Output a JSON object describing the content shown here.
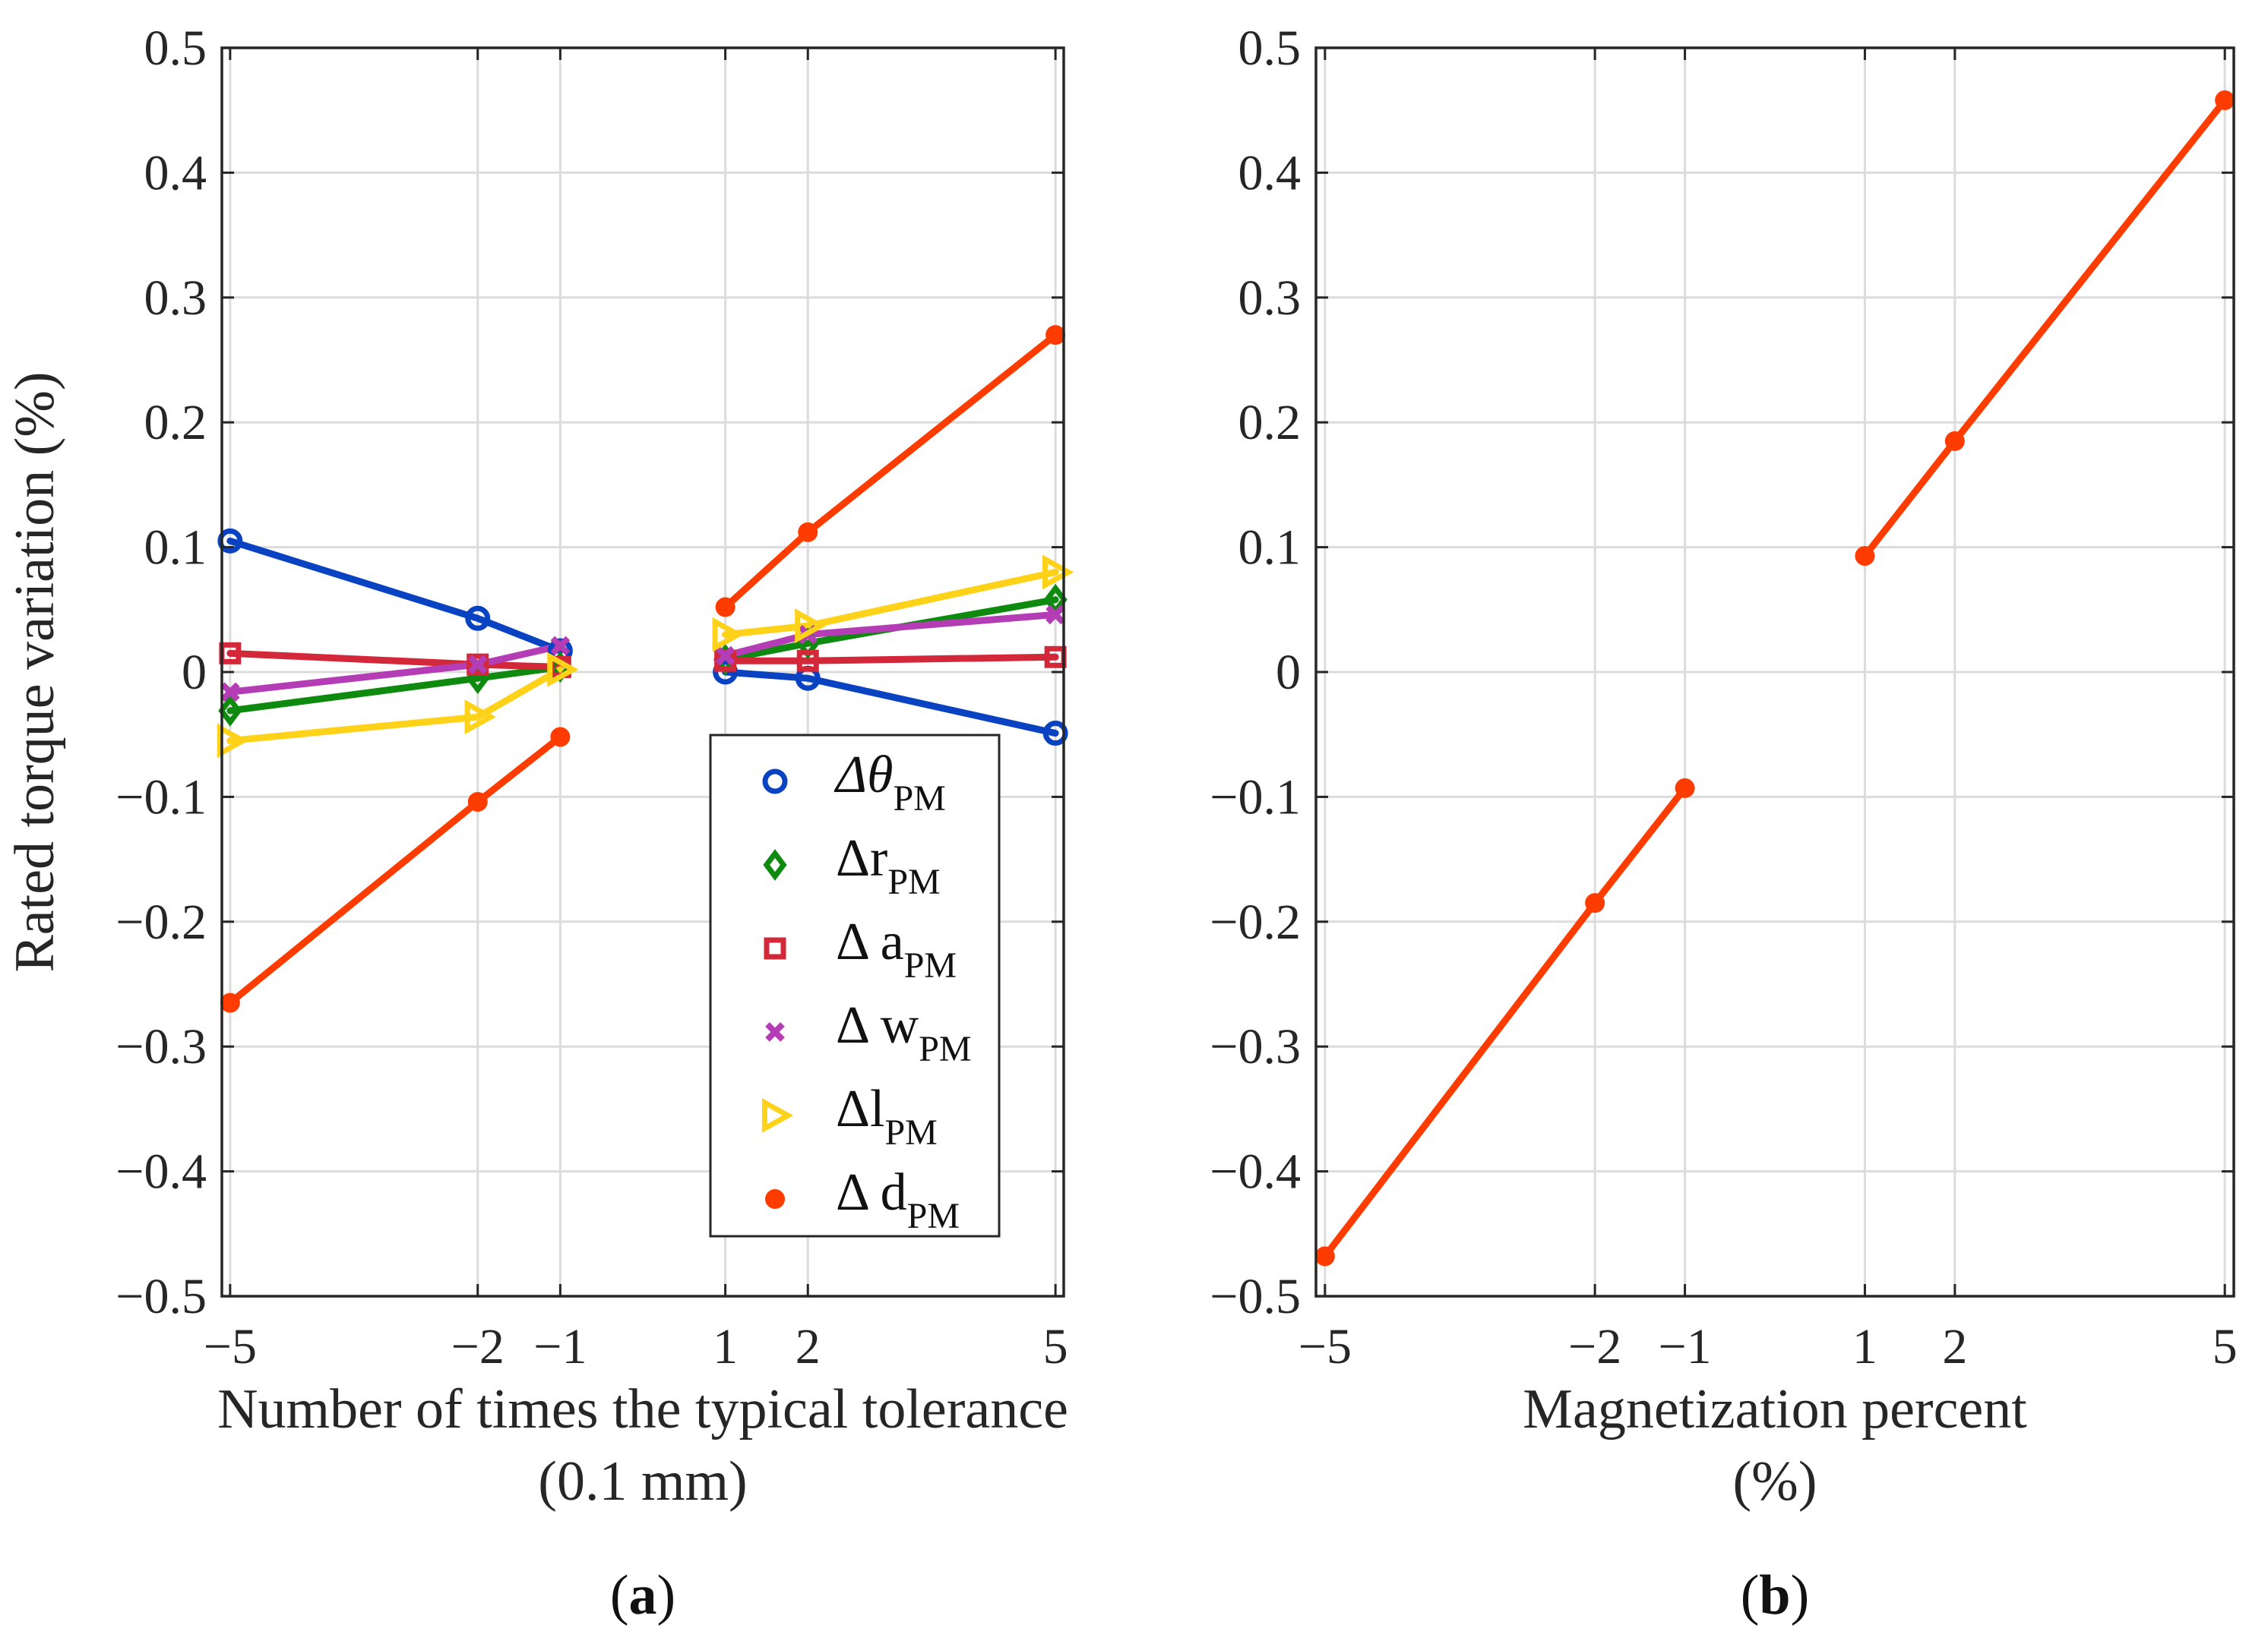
{
  "chart_data": [
    {
      "panel": "(a)",
      "type": "line",
      "ylabel": "Rated torque variation (%)",
      "xlabel_line1": "Number of times the typical tolerance",
      "xlabel_line2": "(0.1 mm)",
      "caption": {
        "open": "(",
        "letter": "a",
        "close": ")"
      },
      "xlim": [
        -5.1,
        5.1
      ],
      "ylim": [
        -0.5,
        0.5
      ],
      "xticks": [
        -5,
        -2,
        -1,
        1,
        2,
        5
      ],
      "xtick_labels": [
        "−5",
        "−2",
        "−1",
        "1",
        "2",
        "5"
      ],
      "yticks": [
        -0.5,
        -0.4,
        -0.3,
        -0.2,
        -0.1,
        0,
        0.1,
        0.2,
        0.3,
        0.4,
        0.5
      ],
      "ytick_labels": [
        "−0.5",
        "−0.4",
        "−0.3",
        "−0.2",
        "−0.1",
        "0",
        "0.1",
        "0.2",
        "0.3",
        "0.4",
        "0.5"
      ],
      "grid": true,
      "legend_position": "lower-right",
      "series": [
        {
          "name": "Δθ_PM",
          "legend_main": "Δθ",
          "legend_sub": "PM",
          "color": "#0a43c2",
          "marker": "circle-open",
          "x": [
            -5,
            -2,
            -1,
            1,
            2,
            5
          ],
          "values": [
            0.105,
            0.043,
            0.017,
            0.0,
            -0.005,
            -0.049
          ]
        },
        {
          "name": "Δr_PM",
          "legend_main": "Δr",
          "legend_sub": "PM",
          "color": "#0e8a0e",
          "marker": "diamond-open",
          "x": [
            -5,
            -2,
            -1,
            1,
            2,
            5
          ],
          "values": [
            -0.031,
            -0.005,
            0.004,
            0.01,
            0.023,
            0.058
          ]
        },
        {
          "name": "Δ a_PM",
          "legend_main": "Δ a",
          "legend_sub": "PM",
          "color": "#d3273a",
          "marker": "square-open",
          "x": [
            -5,
            -2,
            -1,
            1,
            2,
            5
          ],
          "values": [
            0.015,
            0.006,
            0.004,
            0.009,
            0.009,
            0.012
          ]
        },
        {
          "name": "Δ w_PM",
          "legend_main": "Δ w",
          "legend_sub": "PM",
          "color": "#b43cb4",
          "marker": "x",
          "x": [
            -5,
            -2,
            -1,
            1,
            2,
            5
          ],
          "values": [
            -0.016,
            0.006,
            0.021,
            0.013,
            0.03,
            0.046
          ]
        },
        {
          "name": "Δl_PM",
          "legend_main": "Δl",
          "legend_sub": "PM",
          "color": "#ffd21a",
          "marker": "triangle-right-open",
          "x": [
            -5,
            -2,
            -1,
            1,
            2,
            5
          ],
          "values": [
            -0.055,
            -0.036,
            0.002,
            0.03,
            0.037,
            0.08
          ]
        },
        {
          "name": "Δ d_PM",
          "legend_main": "Δ d",
          "legend_sub": "PM",
          "color": "#ff3c00",
          "marker": "dot",
          "x": [
            -5,
            -2,
            -1,
            1,
            2,
            5
          ],
          "values": [
            -0.265,
            -0.104,
            -0.052,
            0.052,
            0.112,
            0.27
          ]
        }
      ]
    },
    {
      "panel": "(b)",
      "type": "line",
      "ylabel": "",
      "xlabel_line1": "Magnetization percent",
      "xlabel_line2": "(%)",
      "caption": {
        "open": "(",
        "letter": "b",
        "close": ")"
      },
      "xlim": [
        -5.1,
        5.1
      ],
      "ylim": [
        -0.5,
        0.5
      ],
      "xticks": [
        -5,
        -2,
        -1,
        1,
        2,
        5
      ],
      "xtick_labels": [
        "−5",
        "−2",
        "−1",
        "1",
        "2",
        "5"
      ],
      "yticks": [
        -0.5,
        -0.4,
        -0.3,
        -0.2,
        -0.1,
        0,
        0.1,
        0.2,
        0.3,
        0.4,
        0.5
      ],
      "ytick_labels": [
        "−0.5",
        "−0.4",
        "−0.3",
        "−0.2",
        "−0.1",
        "0",
        "0.1",
        "0.2",
        "0.3",
        "0.4",
        "0.5"
      ],
      "grid": true,
      "series": [
        {
          "name": "Magnetization",
          "color": "#ff3c00",
          "marker": "dot",
          "x": [
            -5,
            -2,
            -1,
            1,
            2,
            5
          ],
          "values": [
            -0.468,
            -0.185,
            -0.093,
            0.093,
            0.185,
            0.458
          ]
        }
      ]
    }
  ]
}
